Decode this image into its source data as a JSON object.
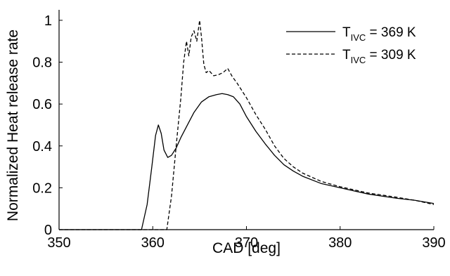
{
  "chart_data": {
    "type": "line",
    "title": "",
    "xlabel": "CAD [deg]",
    "ylabel": "Normalized Heat release rate",
    "xlim": [
      350,
      390
    ],
    "ylim": [
      0,
      1.05
    ],
    "xticks": [
      350,
      360,
      370,
      380,
      390
    ],
    "yticks": [
      0,
      0.2,
      0.4,
      0.6,
      0.8,
      1
    ],
    "xtick_labels": [
      "350",
      "360",
      "370",
      "380",
      "390"
    ],
    "ytick_labels": [
      "0",
      "0.2",
      "0.4",
      "0.6",
      "0.8",
      "1"
    ],
    "grid": false,
    "legend_position": "top-right",
    "series": [
      {
        "name": "T_IVC = 369 K",
        "legend_main": "T",
        "legend_sub": "IVC",
        "legend_rest": " = 369 K",
        "style": "solid",
        "x": [
          358.8,
          359.4,
          359.9,
          360.3,
          360.6,
          360.9,
          361.2,
          361.6,
          362.0,
          362.5,
          363.0,
          363.7,
          364.4,
          365.2,
          366.0,
          366.8,
          367.4,
          368.0,
          368.6,
          369.3,
          370.0,
          371.0,
          372.0,
          373.0,
          374.0,
          375.0,
          376.0,
          378.0,
          380.0,
          383.0,
          386.0,
          388.0,
          390.0
        ],
        "y": [
          0.0,
          0.12,
          0.3,
          0.45,
          0.5,
          0.46,
          0.38,
          0.345,
          0.355,
          0.39,
          0.44,
          0.5,
          0.56,
          0.61,
          0.635,
          0.645,
          0.65,
          0.645,
          0.635,
          0.6,
          0.54,
          0.47,
          0.41,
          0.355,
          0.31,
          0.28,
          0.255,
          0.22,
          0.2,
          0.17,
          0.15,
          0.14,
          0.125
        ]
      },
      {
        "name": "T_IVC = 309 K",
        "legend_main": "T",
        "legend_sub": "IVC",
        "legend_rest": " = 309 K",
        "style": "dashed",
        "x": [
          361.5,
          362.0,
          362.5,
          363.0,
          363.3,
          363.6,
          363.85,
          364.1,
          364.4,
          364.7,
          365.0,
          365.2,
          365.45,
          365.7,
          366.0,
          366.5,
          367.0,
          367.5,
          368.0,
          368.5,
          369.0,
          370.0,
          371.0,
          372.0,
          373.0,
          374.0,
          375.0,
          376.0,
          378.0,
          380.0,
          383.0,
          386.0,
          388.0,
          390.0
        ],
        "y": [
          0.0,
          0.16,
          0.4,
          0.63,
          0.8,
          0.9,
          0.83,
          0.92,
          0.95,
          0.9,
          1.0,
          0.92,
          0.79,
          0.75,
          0.76,
          0.735,
          0.74,
          0.75,
          0.77,
          0.73,
          0.7,
          0.63,
          0.55,
          0.48,
          0.4,
          0.34,
          0.3,
          0.27,
          0.23,
          0.205,
          0.175,
          0.155,
          0.14,
          0.12
        ]
      }
    ]
  }
}
